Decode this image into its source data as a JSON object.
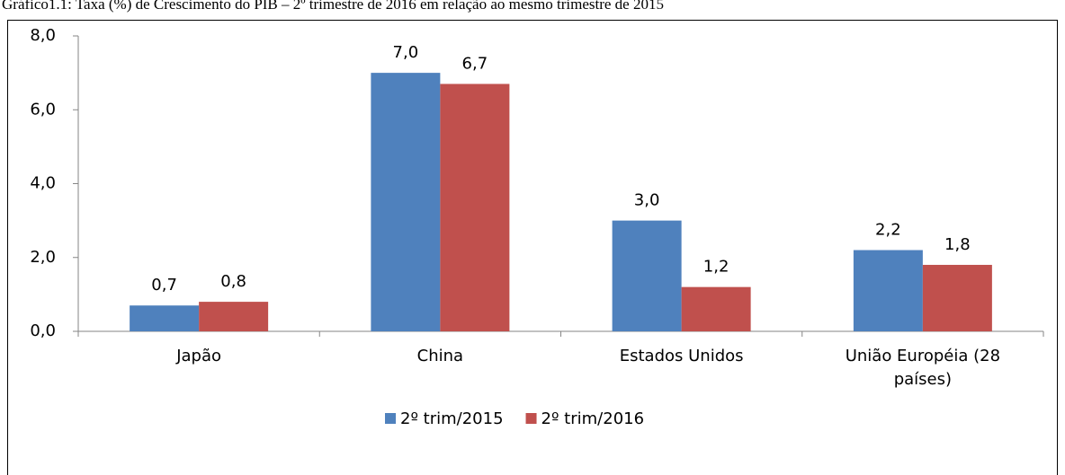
{
  "chart_data": {
    "type": "bar",
    "title": "Gráfico1.1: Taxa (%) de Crescimento do PIB – 2º trimestre de 2016 em relação ao mesmo trimestre de 2015",
    "categories": [
      "Japão",
      "China",
      "Estados Unidos",
      "União Européia (28 países)"
    ],
    "series": [
      {
        "name": "2º trim/2015",
        "color": "#4f81bd",
        "values": [
          0.7,
          7.0,
          3.0,
          2.2
        ],
        "value_labels": [
          "0,7",
          "7,0",
          "3,0",
          "2,2"
        ]
      },
      {
        "name": "2º trim/2016",
        "color": "#c0504d",
        "values": [
          0.8,
          6.7,
          1.2,
          1.8
        ],
        "value_labels": [
          "0,8",
          "6,7",
          "1,2",
          "1,8"
        ]
      }
    ],
    "ylim": [
      0,
      8
    ],
    "yticks": [
      {
        "value": 0,
        "label": "0,0"
      },
      {
        "value": 2,
        "label": "2,0"
      },
      {
        "value": 4,
        "label": "4,0"
      },
      {
        "value": 6,
        "label": "6,0"
      },
      {
        "value": 8,
        "label": "8,0"
      }
    ],
    "grid": false,
    "legend": "bottom"
  }
}
